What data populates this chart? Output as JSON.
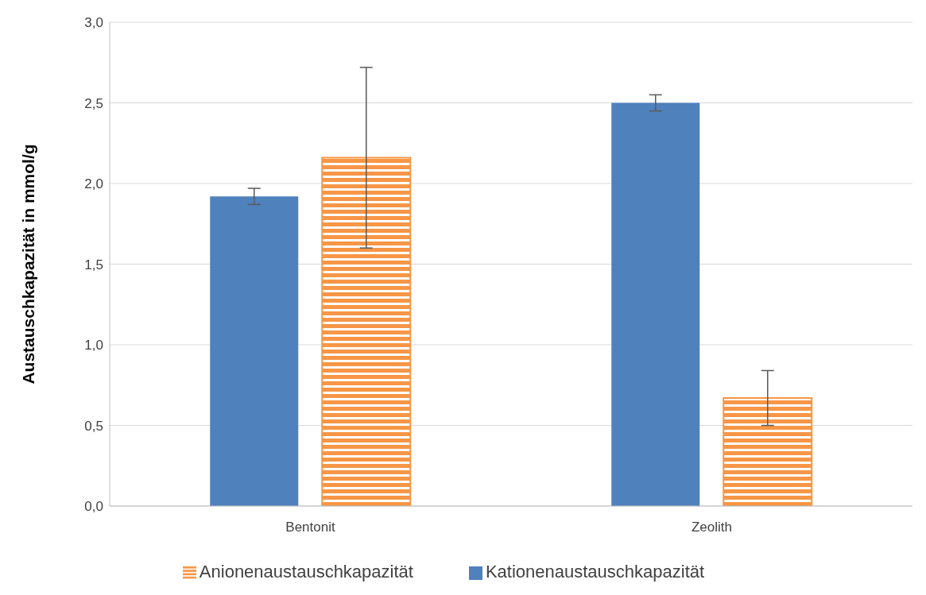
{
  "chart_data": {
    "type": "bar",
    "ylabel": "Austauschkapazität in mmol/g",
    "categories": [
      "Bentonit",
      "Zeolith"
    ],
    "series": [
      {
        "name": "Kationenaustauschkapazität",
        "color": "#4f81bd",
        "values": [
          1.92,
          2.5
        ],
        "errors": [
          0.05,
          0.05
        ]
      },
      {
        "name": "Anionenaustauschkapazität",
        "color": "#f79646",
        "values": [
          2.16,
          0.67
        ],
        "errors": [
          0.56,
          0.17
        ]
      }
    ],
    "ylim": [
      0,
      3
    ],
    "yticks": [
      {
        "value": 0,
        "label": "0,0"
      },
      {
        "value": 0.5,
        "label": "0,5"
      },
      {
        "value": 1,
        "label": "1,0"
      },
      {
        "value": 1.5,
        "label": "1,5"
      },
      {
        "value": 2,
        "label": "2,0"
      },
      {
        "value": 2.5,
        "label": "2,5"
      },
      {
        "value": 3,
        "label": "3,0"
      }
    ],
    "grid": "y",
    "legend": "bottom"
  }
}
